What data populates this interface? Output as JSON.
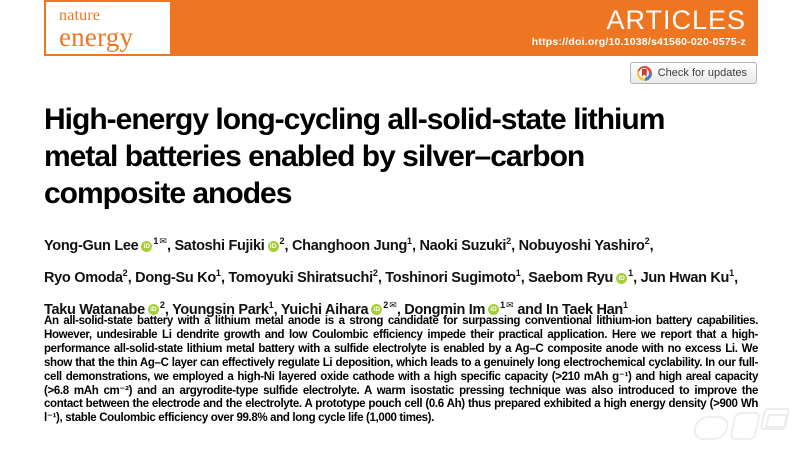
{
  "journal": {
    "name_line1": "nature",
    "name_line2": "energy",
    "section": "ARTICLES",
    "doi": "https://doi.org/10.1038/s41560-020-0575-z"
  },
  "badge": {
    "label": "Check for updates"
  },
  "title": {
    "lines": [
      "High-energy long-cycling all-solid-state lithium",
      "metal batteries enabled by silver–carbon",
      "composite anodes"
    ]
  },
  "authors": {
    "lines": [
      [
        {
          "name": "Yong-Gun Lee",
          "orcid": true,
          "sup": "1",
          "email": true,
          "post": ", "
        },
        {
          "name": "Satoshi Fujiki",
          "orcid": true,
          "sup": "2",
          "post": ", "
        },
        {
          "name": "Changhoon Jung",
          "sup": "1",
          "post": ", "
        },
        {
          "name": "Naoki Suzuki",
          "sup": "2",
          "post": ", "
        },
        {
          "name": "Nobuyoshi Yashiro",
          "sup": "2",
          "post": ","
        }
      ],
      [
        {
          "name": "Ryo Omoda",
          "sup": "2",
          "post": ", "
        },
        {
          "name": "Dong-Su Ko",
          "sup": "1",
          "post": ", "
        },
        {
          "name": "Tomoyuki Shiratsuchi",
          "sup": "2",
          "post": ", "
        },
        {
          "name": "Toshinori Sugimoto",
          "sup": "1",
          "post": ", "
        },
        {
          "name": "Saebom Ryu",
          "orcid": true,
          "sup": "1",
          "post": ", "
        },
        {
          "name": "Jun Hwan Ku",
          "sup": "1",
          "post": ","
        }
      ],
      [
        {
          "name": "Taku Watanabe",
          "orcid": true,
          "sup": "2",
          "post": ", "
        },
        {
          "name": "Youngsin Park",
          "sup": "1",
          "post": ", "
        },
        {
          "name": "Yuichi Aihara",
          "orcid": true,
          "sup": "2",
          "email": true,
          "post": ", "
        },
        {
          "name": "Dongmin Im",
          "orcid": true,
          "sup": "1",
          "email": true,
          "post": " and "
        },
        {
          "name": "In Taek Han",
          "sup": "1",
          "post": ""
        }
      ]
    ]
  },
  "abstract": {
    "text": "An all-solid-state battery with a lithium metal anode is a strong candidate for surpassing conventional lithium-ion battery capabilities. However, undesirable Li dendrite growth and low Coulombic efficiency impede their practical application. Here we report that a high-performance all-solid-state lithium metal battery with a sulfide electrolyte is enabled by a Ag–C composite anode with no excess Li. We show that the thin Ag–C layer can effectively regulate Li deposition, which leads to a genuinely long electrochemical cyclability. In our full-cell demonstrations, we employed a high-Ni layered oxide cathode with a high specific capacity (>210 mAh g⁻¹) and high areal capacity (>6.8 mAh cm⁻²) and an argyrodite-type sulfide electrolyte. A warm isostatic pressing technique was also introduced to improve the contact between the electrode and the electrolyte. A prototype pouch cell (0.6 Ah) thus prepared exhibited a high energy density (>900 Wh l⁻¹), stable Coulombic efficiency over 99.8% and long cycle life (1,000 times)."
  },
  "icons": {
    "orcid_label": "iD",
    "email_glyph": "✉"
  },
  "colors": {
    "brand_orange": "#EE7623",
    "orcid_green": "#A6CE39"
  }
}
